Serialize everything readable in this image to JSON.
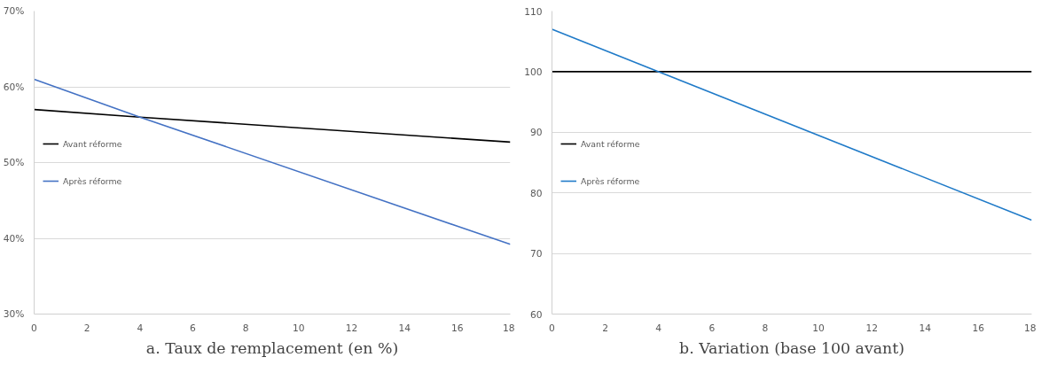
{
  "chart_data": [
    {
      "type": "line",
      "xlabel": "a. Taux de remplacement (en %)",
      "x": [
        0,
        4,
        18
      ],
      "xlim": [
        0,
        18
      ],
      "xticks": [
        0,
        2,
        4,
        6,
        8,
        10,
        12,
        14,
        16,
        18
      ],
      "ylim": [
        30,
        70
      ],
      "yticks": [
        {
          "value": 30,
          "label": "30%"
        },
        {
          "value": 40,
          "label": "40%"
        },
        {
          "value": 50,
          "label": "50%"
        },
        {
          "value": 60,
          "label": "60%"
        },
        {
          "value": 70,
          "label": "70%"
        }
      ],
      "grid": "y",
      "legend": "left",
      "series": [
        {
          "name": "Avant réforme",
          "color": "#000000",
          "values": [
            57,
            56,
            52.7
          ]
        },
        {
          "name": "Après réforme",
          "color": "#4472c4",
          "values": [
            61,
            56,
            39.2
          ]
        }
      ]
    },
    {
      "type": "line",
      "xlabel": "b. Variation (base 100 avant)",
      "x": [
        0,
        4,
        18
      ],
      "xlim": [
        0,
        18
      ],
      "xticks": [
        0,
        2,
        4,
        6,
        8,
        10,
        12,
        14,
        16,
        18
      ],
      "ylim": [
        60,
        110
      ],
      "yticks": [
        60,
        70,
        80,
        90,
        100,
        110
      ],
      "grid": "y",
      "legend": "left",
      "series": [
        {
          "name": "Avant réforme",
          "color": "#000000",
          "values": [
            100,
            100,
            100
          ]
        },
        {
          "name": "Après réforme",
          "color": "#1f7ac8",
          "values": [
            107,
            100,
            75.5
          ]
        }
      ]
    }
  ]
}
